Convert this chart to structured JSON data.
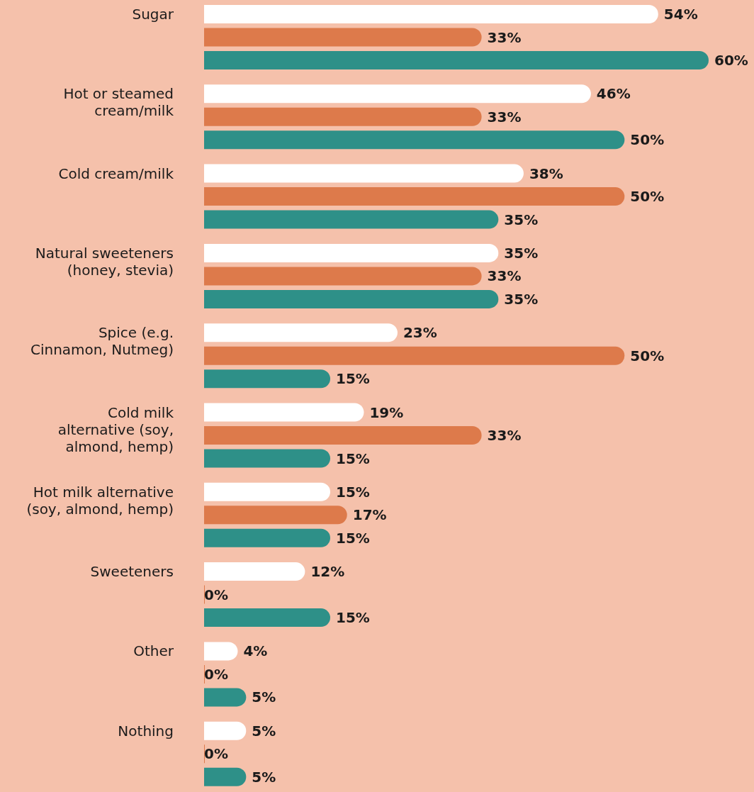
{
  "chart_data": {
    "type": "bar",
    "orientation": "horizontal",
    "categories": [
      "Sugar",
      "Hot or steamed cream/milk",
      "Cold cream/milk",
      "Natural sweeteners (honey, stevia)",
      "Spice (e.g. Cinnamon, Nutmeg)",
      "Cold milk alternative (soy, almond, hemp)",
      "Hot milk alternative (soy, almond, hemp)",
      "Sweeteners",
      "Other",
      "Nothing"
    ],
    "series": [
      {
        "color": "#ffffff",
        "values": [
          54,
          46,
          38,
          35,
          23,
          19,
          15,
          12,
          4,
          5
        ],
        "value_labels": [
          "54%",
          "46%",
          "38%",
          "35%",
          "23%",
          "19%",
          "15%",
          "12%",
          "4%",
          "5%"
        ]
      },
      {
        "color": "#dd7a4b",
        "values": [
          33,
          33,
          50,
          33,
          50,
          33,
          17,
          0,
          0,
          0
        ],
        "value_labels": [
          "33%",
          "33%",
          "50%",
          "33%",
          "50%",
          "33%",
          "17%",
          "0%",
          "0%",
          "0%"
        ]
      },
      {
        "color": "#2e9088",
        "values": [
          60,
          50,
          35,
          35,
          15,
          15,
          15,
          15,
          5,
          5
        ],
        "value_labels": [
          "60%",
          "50%",
          "35%",
          "35%",
          "15%",
          "15%",
          "15%",
          "15%",
          "5%",
          "5%"
        ]
      }
    ]
  }
}
